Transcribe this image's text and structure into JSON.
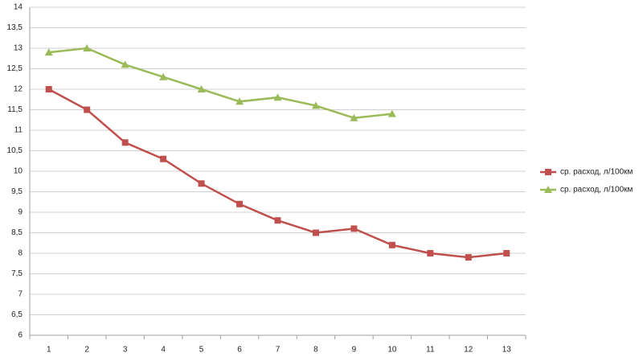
{
  "chart_data": {
    "type": "line",
    "categories": [
      "1",
      "2",
      "3",
      "4",
      "5",
      "6",
      "7",
      "8",
      "9",
      "10",
      "11",
      "12",
      "13"
    ],
    "series": [
      {
        "name": "ср. расход, л/100км",
        "color": "#c0504d",
        "marker": "square",
        "values": [
          12,
          11.5,
          10.7,
          10.3,
          9.7,
          9.2,
          8.8,
          8.5,
          8.6,
          8.2,
          8.0,
          7.9,
          8.0
        ]
      },
      {
        "name": "ср. расход, л/100км",
        "color": "#9bbb59",
        "marker": "triangle",
        "values": [
          12.9,
          13.0,
          12.6,
          12.3,
          12.0,
          11.7,
          11.8,
          11.6,
          11.3,
          11.4,
          null,
          null,
          null
        ]
      }
    ],
    "ylim": [
      6,
      14
    ],
    "yticks": [
      6,
      {
        "value": 6.5,
        "label": "6,5"
      },
      7,
      {
        "value": 7.5,
        "label": "7,5"
      },
      8,
      {
        "value": 8.5,
        "label": "8,5"
      },
      9,
      {
        "value": 9.5,
        "label": "9,5"
      },
      10,
      {
        "value": 10.5,
        "label": "10,5"
      },
      11,
      {
        "value": 11.5,
        "label": "11,5"
      },
      12,
      {
        "value": 12.5,
        "label": "12,5"
      },
      13,
      {
        "value": 13.5,
        "label": "13,5"
      },
      14
    ],
    "grid": true,
    "legend": "right"
  }
}
